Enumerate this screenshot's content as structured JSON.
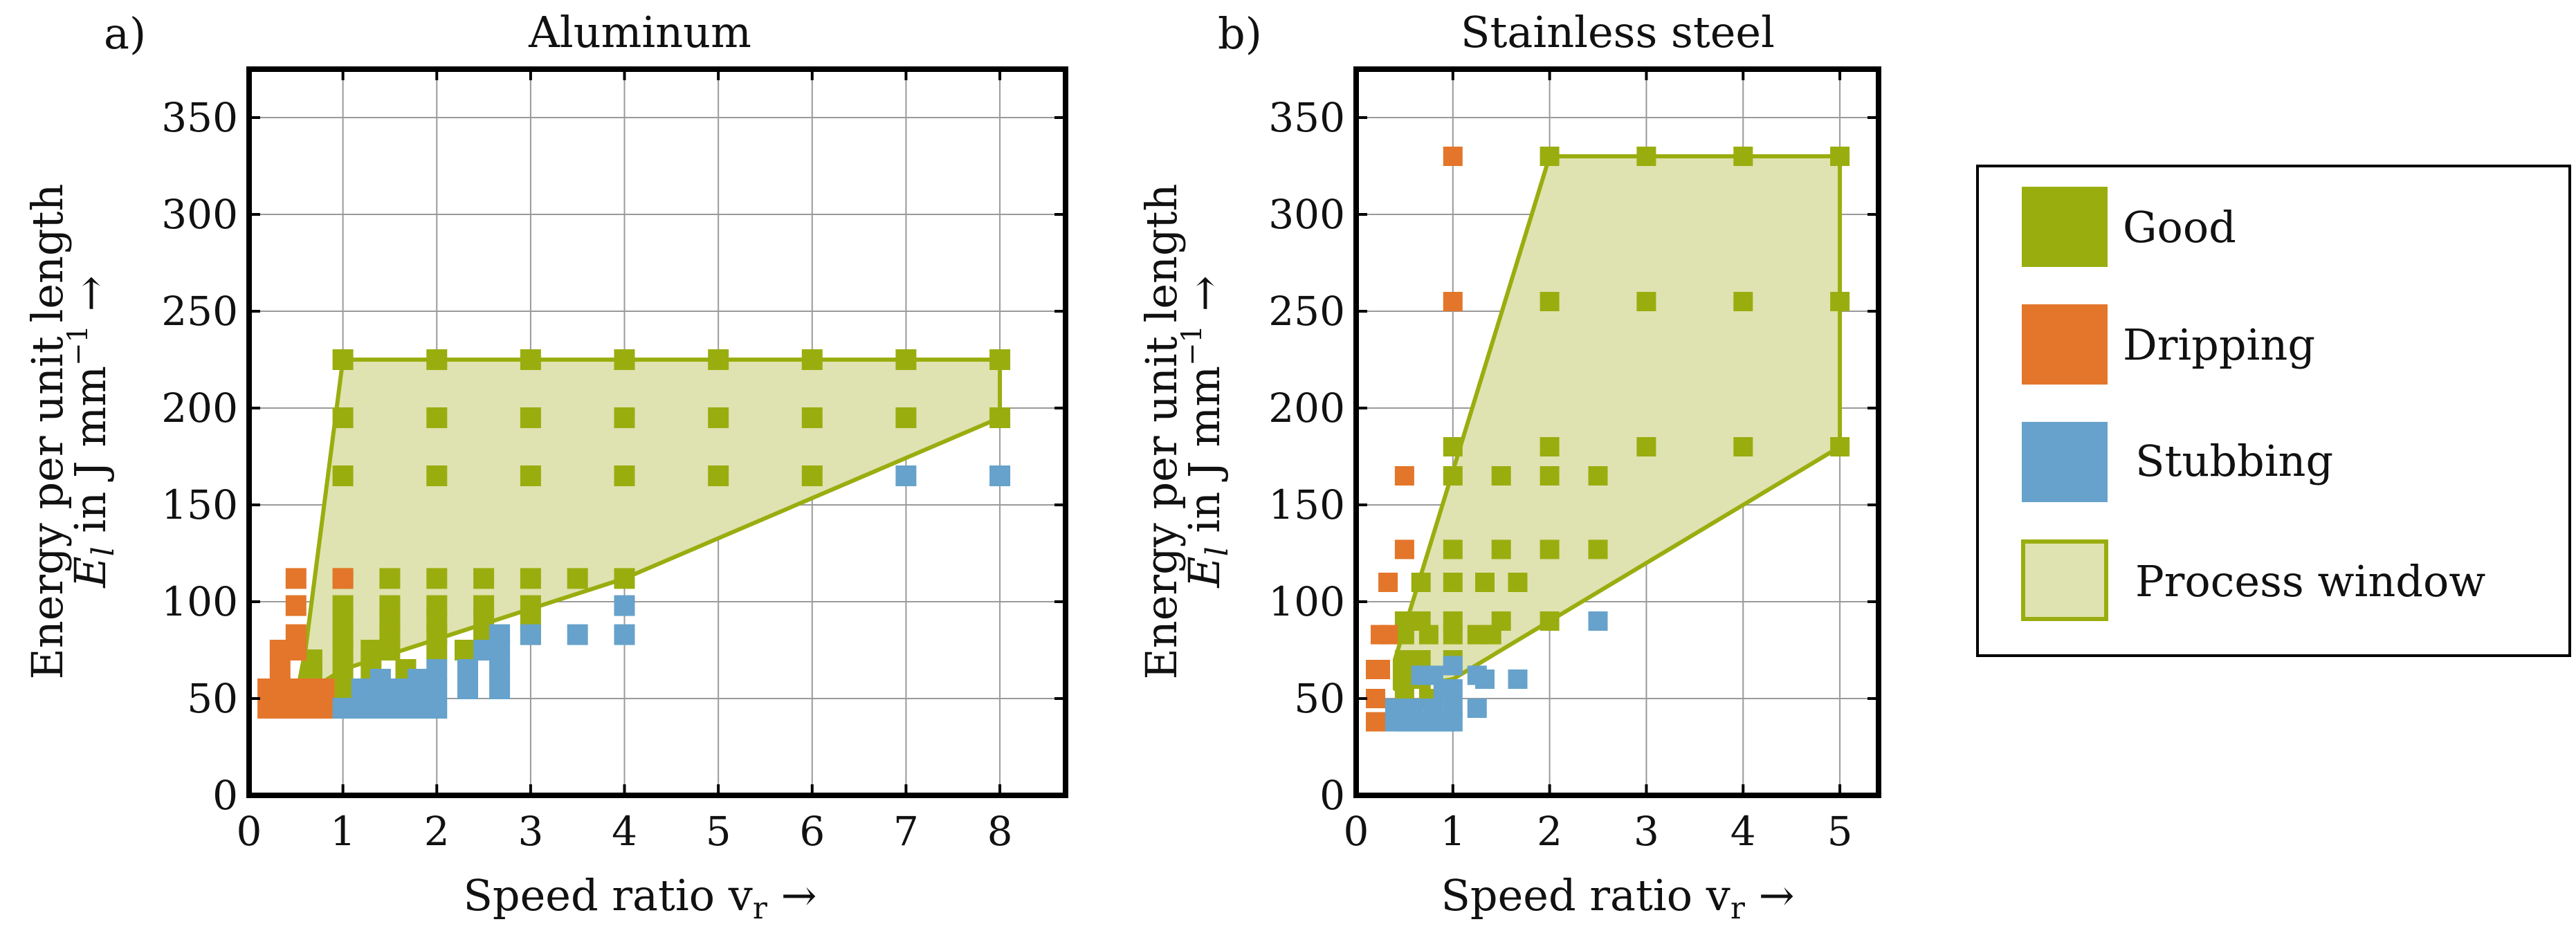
{
  "colors": {
    "good": "#9aad0f",
    "dripping": "#e3762a",
    "stubbing": "#66a2cb",
    "window_fill": "#dfe3b1",
    "window_stroke": "#9aad0f"
  },
  "legend": {
    "good": "Good",
    "dripping": "Dripping",
    "stubbing": "Stubbing",
    "window": "Process window"
  },
  "chart_data": [
    {
      "type": "scatter",
      "panel_label": "a)",
      "title": "Aluminum",
      "xlabel_text": "Speed ratio v",
      "xlabel_sub": "r",
      "xlabel_arrow": " →",
      "ylabel_line1": "Energy per unit length",
      "ylabel_var": "E",
      "ylabel_sub": "l",
      "ylabel_unit": " in J mm",
      "ylabel_exp": "−1",
      "ylabel_arrow": " →",
      "xlim": [
        0,
        8.7
      ],
      "ylim": [
        0,
        375
      ],
      "xticks": [
        0,
        1,
        2,
        3,
        4,
        5,
        6,
        7,
        8
      ],
      "yticks": [
        0,
        50,
        100,
        150,
        200,
        250,
        300,
        350
      ],
      "grid": true,
      "process_window": [
        [
          0.5,
          50
        ],
        [
          0.6,
          75
        ],
        [
          1,
          225
        ],
        [
          8,
          225
        ],
        [
          8,
          195
        ],
        [
          4,
          112
        ],
        [
          1,
          65
        ],
        [
          0.5,
          50
        ]
      ],
      "series": [
        {
          "name": "Good",
          "points": [
            [
              1,
              225
            ],
            [
              2,
              225
            ],
            [
              3,
              225
            ],
            [
              4,
              225
            ],
            [
              5,
              225
            ],
            [
              6,
              225
            ],
            [
              7,
              225
            ],
            [
              8,
              225
            ],
            [
              1,
              195
            ],
            [
              2,
              195
            ],
            [
              3,
              195
            ],
            [
              4,
              195
            ],
            [
              5,
              195
            ],
            [
              6,
              195
            ],
            [
              7,
              195
            ],
            [
              8,
              195
            ],
            [
              1,
              165
            ],
            [
              2,
              165
            ],
            [
              3,
              165
            ],
            [
              4,
              165
            ],
            [
              5,
              165
            ],
            [
              6,
              165
            ],
            [
              1,
              112
            ],
            [
              1.5,
              112
            ],
            [
              2,
              112
            ],
            [
              2.5,
              112
            ],
            [
              3,
              112
            ],
            [
              3.5,
              112
            ],
            [
              4,
              112
            ],
            [
              1,
              98
            ],
            [
              1.5,
              98
            ],
            [
              2,
              98
            ],
            [
              2.5,
              98
            ],
            [
              3,
              98
            ],
            [
              1,
              90
            ],
            [
              1.5,
              90
            ],
            [
              2,
              90
            ],
            [
              2.5,
              90
            ],
            [
              3,
              90
            ],
            [
              1,
              83
            ],
            [
              1.5,
              83
            ],
            [
              2,
              83
            ],
            [
              2.5,
              83
            ],
            [
              3,
              83
            ],
            [
              1,
              75
            ],
            [
              1.3,
              75
            ],
            [
              1.5,
              75
            ],
            [
              2,
              75
            ],
            [
              2.3,
              75
            ],
            [
              1,
              65
            ],
            [
              0.67,
              65
            ],
            [
              1.3,
              65
            ],
            [
              1.67,
              65
            ],
            [
              0.67,
              55
            ],
            [
              1,
              55
            ],
            [
              0.67,
              70
            ]
          ]
        },
        {
          "name": "Dripping",
          "points": [
            [
              0.5,
              112
            ],
            [
              1,
              112
            ],
            [
              0.5,
              98
            ],
            [
              0.5,
              83
            ],
            [
              0.33,
              75
            ],
            [
              0.5,
              75
            ],
            [
              0.33,
              65
            ],
            [
              0.2,
              55
            ],
            [
              0.3,
              55
            ],
            [
              0.4,
              55
            ],
            [
              0.5,
              55
            ],
            [
              0.6,
              55
            ],
            [
              0.7,
              55
            ],
            [
              0.8,
              55
            ],
            [
              0.2,
              45
            ],
            [
              0.3,
              45
            ],
            [
              0.4,
              45
            ],
            [
              0.5,
              45
            ],
            [
              0.6,
              45
            ],
            [
              0.7,
              45
            ],
            [
              0.8,
              45
            ]
          ]
        },
        {
          "name": "Stubbing",
          "points": [
            [
              7,
              165
            ],
            [
              8,
              165
            ],
            [
              4,
              98
            ],
            [
              2.67,
              83
            ],
            [
              3,
              83
            ],
            [
              3.5,
              83
            ],
            [
              4,
              83
            ],
            [
              2.5,
              75
            ],
            [
              2.67,
              75
            ],
            [
              2.33,
              65
            ],
            [
              2.67,
              65
            ],
            [
              2.33,
              55
            ],
            [
              2.67,
              55
            ],
            [
              1,
              45
            ],
            [
              1.2,
              45
            ],
            [
              1.4,
              45
            ],
            [
              1.6,
              45
            ],
            [
              1.8,
              45
            ],
            [
              2,
              45
            ],
            [
              1.2,
              55
            ],
            [
              1.4,
              55
            ],
            [
              1.6,
              55
            ],
            [
              1.8,
              55
            ],
            [
              2,
              55
            ],
            [
              1.4,
              60
            ],
            [
              1.8,
              60
            ],
            [
              2,
              65
            ]
          ]
        }
      ]
    },
    {
      "type": "scatter",
      "panel_label": "b)",
      "title": "Stainless steel",
      "xlabel_text": "Speed ratio v",
      "xlabel_sub": "r",
      "xlabel_arrow": " →",
      "ylabel_line1": "Energy per unit length",
      "ylabel_var": "E",
      "ylabel_sub": "l",
      "ylabel_unit": " in J mm",
      "ylabel_exp": "−1",
      "ylabel_arrow": " →",
      "xlim": [
        0,
        5.4
      ],
      "ylim": [
        0,
        375
      ],
      "xticks": [
        0,
        1,
        2,
        3,
        4,
        5
      ],
      "yticks": [
        0,
        50,
        100,
        150,
        200,
        250,
        300,
        350
      ],
      "grid": true,
      "process_window": [
        [
          0.4,
          55
        ],
        [
          0.4,
          70
        ],
        [
          2,
          330
        ],
        [
          5,
          330
        ],
        [
          5,
          180
        ],
        [
          2,
          90
        ],
        [
          1,
          60
        ],
        [
          0.4,
          55
        ]
      ],
      "series": [
        {
          "name": "Good",
          "points": [
            [
              2,
              330
            ],
            [
              3,
              330
            ],
            [
              4,
              330
            ],
            [
              5,
              330
            ],
            [
              2,
              255
            ],
            [
              3,
              255
            ],
            [
              4,
              255
            ],
            [
              5,
              255
            ],
            [
              1,
              180
            ],
            [
              2,
              180
            ],
            [
              3,
              180
            ],
            [
              4,
              180
            ],
            [
              5,
              180
            ],
            [
              1,
              165
            ],
            [
              1.5,
              165
            ],
            [
              2,
              165
            ],
            [
              2.5,
              165
            ],
            [
              1,
              127
            ],
            [
              1.5,
              127
            ],
            [
              2,
              127
            ],
            [
              2.5,
              127
            ],
            [
              0.67,
              110
            ],
            [
              1,
              110
            ],
            [
              1.33,
              110
            ],
            [
              1.67,
              110
            ],
            [
              0.5,
              90
            ],
            [
              0.67,
              90
            ],
            [
              1,
              90
            ],
            [
              1.5,
              90
            ],
            [
              2,
              90
            ],
            [
              0.5,
              83
            ],
            [
              0.75,
              83
            ],
            [
              1,
              83
            ],
            [
              1.25,
              83
            ],
            [
              1.4,
              83
            ],
            [
              0.5,
              70
            ],
            [
              0.67,
              70
            ],
            [
              1,
              70
            ],
            [
              0.5,
              60
            ],
            [
              0.67,
              60
            ],
            [
              0.5,
              50
            ],
            [
              0.75,
              50
            ]
          ]
        },
        {
          "name": "Dripping",
          "points": [
            [
              1,
              330
            ],
            [
              1,
              255
            ],
            [
              0.5,
              165
            ],
            [
              0.5,
              127
            ],
            [
              0.33,
              110
            ],
            [
              0.25,
              83
            ],
            [
              0.33,
              83
            ],
            [
              0.2,
              65
            ],
            [
              0.25,
              65
            ],
            [
              0.2,
              50
            ],
            [
              0.2,
              38
            ]
          ]
        },
        {
          "name": "Stubbing",
          "points": [
            [
              2.5,
              90
            ],
            [
              1,
              67
            ],
            [
              0.67,
              62
            ],
            [
              0.8,
              62
            ],
            [
              1.25,
              62
            ],
            [
              1.33,
              60
            ],
            [
              1.67,
              60
            ],
            [
              0.4,
              45
            ],
            [
              0.5,
              45
            ],
            [
              0.6,
              45
            ],
            [
              0.8,
              45
            ],
            [
              1,
              45
            ],
            [
              1.25,
              45
            ],
            [
              0.4,
              38
            ],
            [
              0.5,
              38
            ],
            [
              0.6,
              38
            ],
            [
              0.7,
              38
            ],
            [
              0.8,
              38
            ],
            [
              0.9,
              38
            ],
            [
              1,
              38
            ],
            [
              0.9,
              55
            ],
            [
              1,
              55
            ]
          ]
        }
      ]
    }
  ]
}
